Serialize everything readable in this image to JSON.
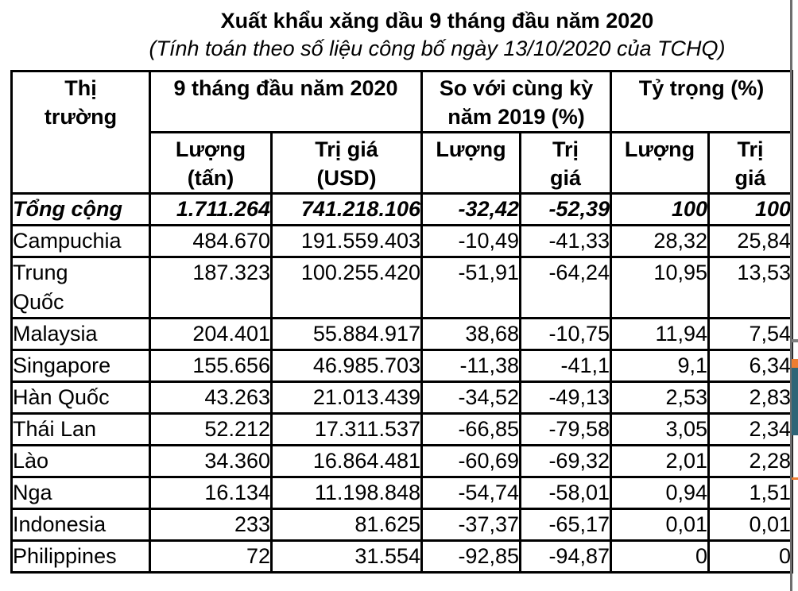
{
  "title": "Xuất khẩu xăng dầu 9 tháng đầu năm 2020",
  "subtitle": "(Tính toán theo số liệu công bố ngày 13/10/2020 của TCHQ)",
  "table": {
    "header": {
      "market": "Thị\ntrường",
      "group_9months": "9 tháng đầu năm 2020",
      "group_yoy": "So với cùng kỳ\nnăm 2019 (%)",
      "group_share": "Tỷ trọng (%)",
      "sub": [
        "Lượng\n(tấn)",
        "Trị giá\n(USD)",
        "Lượng",
        "Trị\ngiá",
        "Lượng",
        "Trị\ngiá"
      ]
    },
    "rows": [
      {
        "market": "Tổng cộng",
        "qty": "1.711.264",
        "value": "741.218.106",
        "yoy_qty": "-32,42",
        "yoy_value": "-52,39",
        "share_qty": "100",
        "share_value": "100",
        "is_total": true,
        "two_line": false
      },
      {
        "market": "Campuchia",
        "qty": "484.670",
        "value": "191.559.403",
        "yoy_qty": "-10,49",
        "yoy_value": "-41,33",
        "share_qty": "28,32",
        "share_value": "25,84",
        "is_total": false,
        "two_line": false
      },
      {
        "market": "Trung\nQuốc",
        "qty": "187.323",
        "value": "100.255.420",
        "yoy_qty": "-51,91",
        "yoy_value": "-64,24",
        "share_qty": "10,95",
        "share_value": "13,53",
        "is_total": false,
        "two_line": true
      },
      {
        "market": "Malaysia",
        "qty": "204.401",
        "value": "55.884.917",
        "yoy_qty": "38,68",
        "yoy_value": "-10,75",
        "share_qty": "11,94",
        "share_value": "7,54",
        "is_total": false,
        "two_line": false
      },
      {
        "market": "Singapore",
        "qty": "155.656",
        "value": "46.985.703",
        "yoy_qty": "-11,38",
        "yoy_value": "-41,1",
        "share_qty": "9,1",
        "share_value": "6,34",
        "is_total": false,
        "two_line": false
      },
      {
        "market": "Hàn Quốc",
        "qty": "43.263",
        "value": "21.013.439",
        "yoy_qty": "-34,52",
        "yoy_value": "-49,13",
        "share_qty": "2,53",
        "share_value": "2,83",
        "is_total": false,
        "two_line": false
      },
      {
        "market": "Thái Lan",
        "qty": "52.212",
        "value": "17.311.537",
        "yoy_qty": "-66,85",
        "yoy_value": "-79,58",
        "share_qty": "3,05",
        "share_value": "2,34",
        "is_total": false,
        "two_line": false
      },
      {
        "market": "Lào",
        "qty": "34.360",
        "value": "16.864.481",
        "yoy_qty": "-60,69",
        "yoy_value": "-69,32",
        "share_qty": "2,01",
        "share_value": "2,28",
        "is_total": false,
        "two_line": false
      },
      {
        "market": "Nga",
        "qty": "16.134",
        "value": "11.198.848",
        "yoy_qty": "-54,74",
        "yoy_value": "-58,01",
        "share_qty": "0,94",
        "share_value": "1,51",
        "is_total": false,
        "two_line": false
      },
      {
        "market": "Indonesia",
        "qty": "233",
        "value": "81.625",
        "yoy_qty": "-37,37",
        "yoy_value": "-65,17",
        "share_qty": "0,01",
        "share_value": "0,01",
        "is_total": false,
        "two_line": false
      },
      {
        "market": "Philippines",
        "qty": "72",
        "value": "31.554",
        "yoy_qty": "-92,85",
        "yoy_value": "-94,87",
        "share_qty": "0",
        "share_value": "0",
        "is_total": false,
        "two_line": false
      }
    ]
  },
  "edge_fragments": {
    "page_edge_line_color": "#6e6e6e",
    "gray_tick_color": "#7f7f7f",
    "orange_color": "#ed7d31",
    "teal_color": "#2e6577"
  }
}
